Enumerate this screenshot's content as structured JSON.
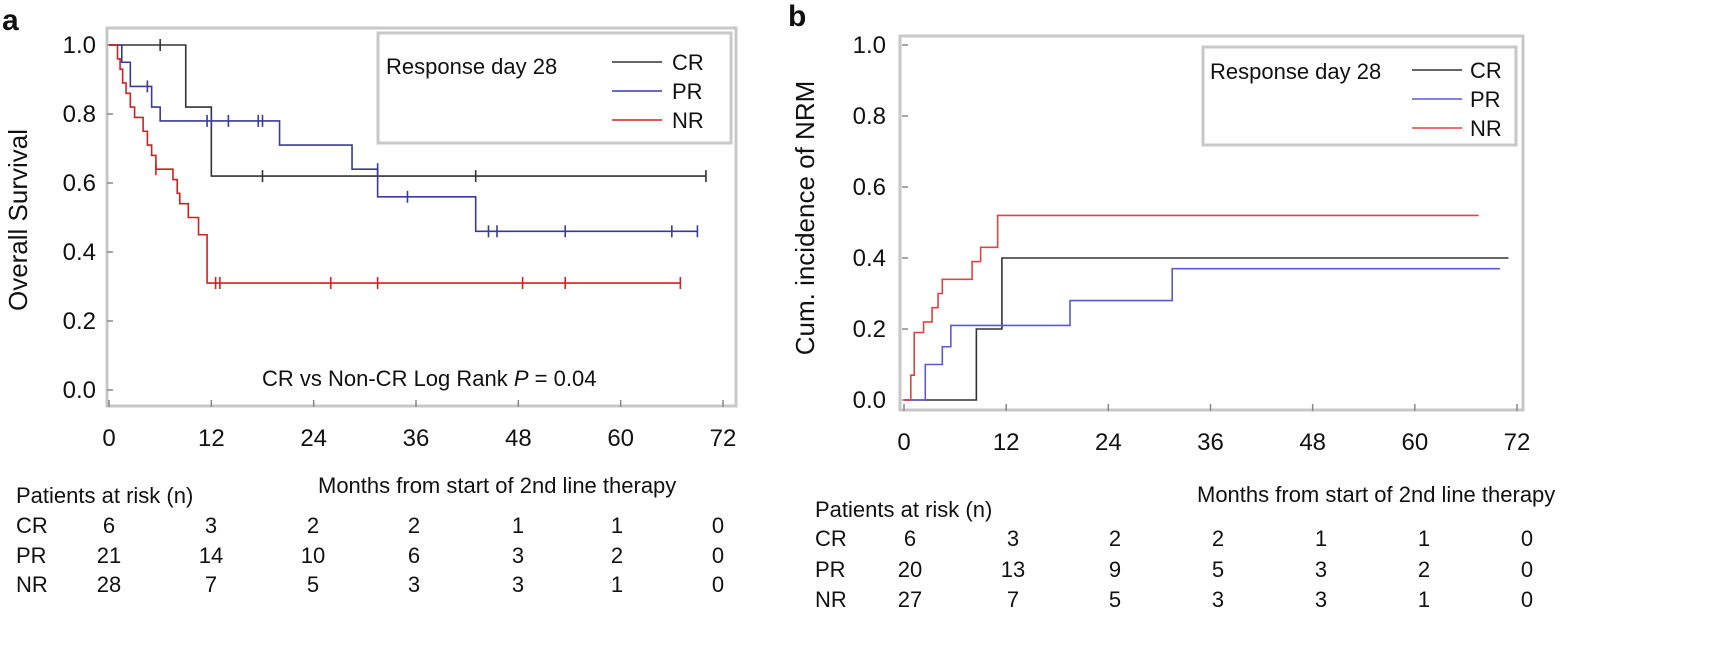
{
  "chart_data": [
    {
      "panel": "a",
      "type": "line",
      "subtype": "kaplan-meier",
      "title": "",
      "ylabel": "Overall Survival",
      "xlabel": "Months from start of 2nd line therapy",
      "xlim": [
        0,
        72
      ],
      "ylim": [
        0,
        1
      ],
      "xticks": [
        "0",
        "12",
        "24",
        "36",
        "48",
        "60",
        "72"
      ],
      "yticks": [
        "0.0",
        "0.2",
        "0.4",
        "0.6",
        "0.8",
        "1.0"
      ],
      "legend_title": "Response day 28",
      "annotation": {
        "prefix": "CR vs Non-CR Log Rank ",
        "p_label": "P",
        "suffix": " = 0.04"
      },
      "series": [
        {
          "name": "CR",
          "color": "#333333",
          "x": [
            0,
            9,
            12,
            70
          ],
          "y": [
            1.0,
            0.82,
            0.62,
            0.62
          ],
          "censor": [
            [
              6,
              1.0
            ],
            [
              18,
              0.62
            ],
            [
              43,
              0.62
            ],
            [
              70,
              0.62
            ]
          ]
        },
        {
          "name": "PR",
          "color": "#3a3a9a",
          "x": [
            0,
            1.5,
            2.5,
            5,
            6,
            20,
            28.5,
            31.5,
            43,
            69
          ],
          "y": [
            1.0,
            0.95,
            0.88,
            0.82,
            0.78,
            0.71,
            0.64,
            0.56,
            0.46,
            0.46
          ],
          "censor": [
            [
              4.5,
              0.88
            ],
            [
              11.5,
              0.78
            ],
            [
              12,
              0.78
            ],
            [
              14,
              0.78
            ],
            [
              17.5,
              0.78
            ],
            [
              18,
              0.78
            ],
            [
              31.5,
              0.64
            ],
            [
              35,
              0.56
            ],
            [
              44.5,
              0.46
            ],
            [
              45.5,
              0.46
            ],
            [
              53.5,
              0.46
            ],
            [
              66,
              0.46
            ],
            [
              69,
              0.46
            ]
          ]
        },
        {
          "name": "NR",
          "color": "#cc2222",
          "x": [
            0,
            1.0,
            1.3,
            1.6,
            2.0,
            2.5,
            3.0,
            4.0,
            4.5,
            5.0,
            5.5,
            7.5,
            8.0,
            8.3,
            9.3,
            10.5,
            11.5,
            67
          ],
          "y": [
            1.0,
            0.96,
            0.93,
            0.89,
            0.86,
            0.82,
            0.79,
            0.75,
            0.71,
            0.68,
            0.64,
            0.61,
            0.57,
            0.54,
            0.5,
            0.45,
            0.31,
            0.31
          ],
          "censor": [
            [
              5.5,
              0.64
            ],
            [
              12.5,
              0.31
            ],
            [
              13,
              0.31
            ],
            [
              26,
              0.31
            ],
            [
              31.5,
              0.31
            ],
            [
              48.5,
              0.31
            ],
            [
              53.5,
              0.31
            ],
            [
              67,
              0.31
            ]
          ]
        }
      ],
      "risk_table": {
        "title": "Patients at risk (n)",
        "rows": [
          {
            "label": "CR",
            "values": [
              "6",
              "3",
              "2",
              "2",
              "1",
              "1",
              "0"
            ]
          },
          {
            "label": "PR",
            "values": [
              "21",
              "14",
              "10",
              "6",
              "3",
              "2",
              "0"
            ]
          },
          {
            "label": "NR",
            "values": [
              "28",
              "7",
              "5",
              "3",
              "3",
              "1",
              "0"
            ]
          }
        ]
      }
    },
    {
      "panel": "b",
      "type": "line",
      "subtype": "cumulative-incidence",
      "title": "",
      "ylabel": "Cum. incidence of NRM",
      "xlabel": "Months from start of 2nd line therapy",
      "xlim": [
        0,
        72
      ],
      "ylim": [
        0,
        1
      ],
      "xticks": [
        "0",
        "12",
        "24",
        "36",
        "48",
        "60",
        "72"
      ],
      "yticks": [
        "0.0",
        "0.2",
        "0.4",
        "0.6",
        "0.8",
        "1.0"
      ],
      "legend_title": "Response day 28",
      "series": [
        {
          "name": "CR",
          "color": "#333333",
          "x": [
            0,
            8.5,
            11.5,
            71
          ],
          "y": [
            0.0,
            0.2,
            0.4,
            0.4
          ]
        },
        {
          "name": "PR",
          "color": "#5a5ad0",
          "x": [
            0,
            2.5,
            4.5,
            5.5,
            19.5,
            31.5,
            70
          ],
          "y": [
            0.0,
            0.1,
            0.15,
            0.21,
            0.28,
            0.37,
            0.37
          ]
        },
        {
          "name": "NR",
          "color": "#dd4444",
          "x": [
            0,
            0.8,
            1.2,
            2.3,
            3.3,
            4.0,
            4.5,
            5.5,
            8.0,
            9.0,
            11.0,
            67.5
          ],
          "y": [
            0.0,
            0.07,
            0.19,
            0.22,
            0.26,
            0.3,
            0.34,
            0.34,
            0.39,
            0.43,
            0.52,
            0.52
          ]
        }
      ],
      "risk_table": {
        "title": "Patients at risk (n)",
        "rows": [
          {
            "label": "CR",
            "values": [
              "6",
              "3",
              "2",
              "2",
              "1",
              "1",
              "0"
            ]
          },
          {
            "label": "PR",
            "values": [
              "20",
              "13",
              "9",
              "5",
              "3",
              "2",
              "0"
            ]
          },
          {
            "label": "NR",
            "values": [
              "27",
              "7",
              "5",
              "3",
              "3",
              "1",
              "0"
            ]
          }
        ]
      }
    }
  ]
}
